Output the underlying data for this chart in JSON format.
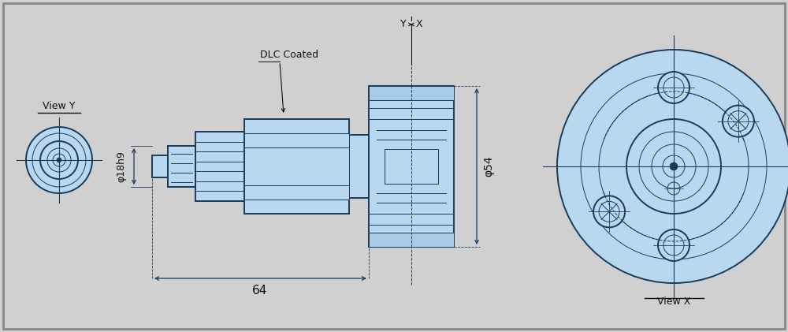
{
  "bg_color": "#d0d0d0",
  "line_color": "#1a3a5c",
  "fill_color": "#b8d8f0",
  "fill_color2": "#a8cce8",
  "dim_color": "#1a3a5c",
  "text_color": "#111111",
  "view_y_label": "View Y",
  "view_x_label": "View X",
  "dlc_label": "DLC Coated",
  "dim_phi54": "φ54",
  "dim_phi18": "φ18h9",
  "dim_64": "64",
  "label_y": "Y",
  "label_x": "X",
  "figw": 10.0,
  "figh": 4.21,
  "dpi": 100
}
